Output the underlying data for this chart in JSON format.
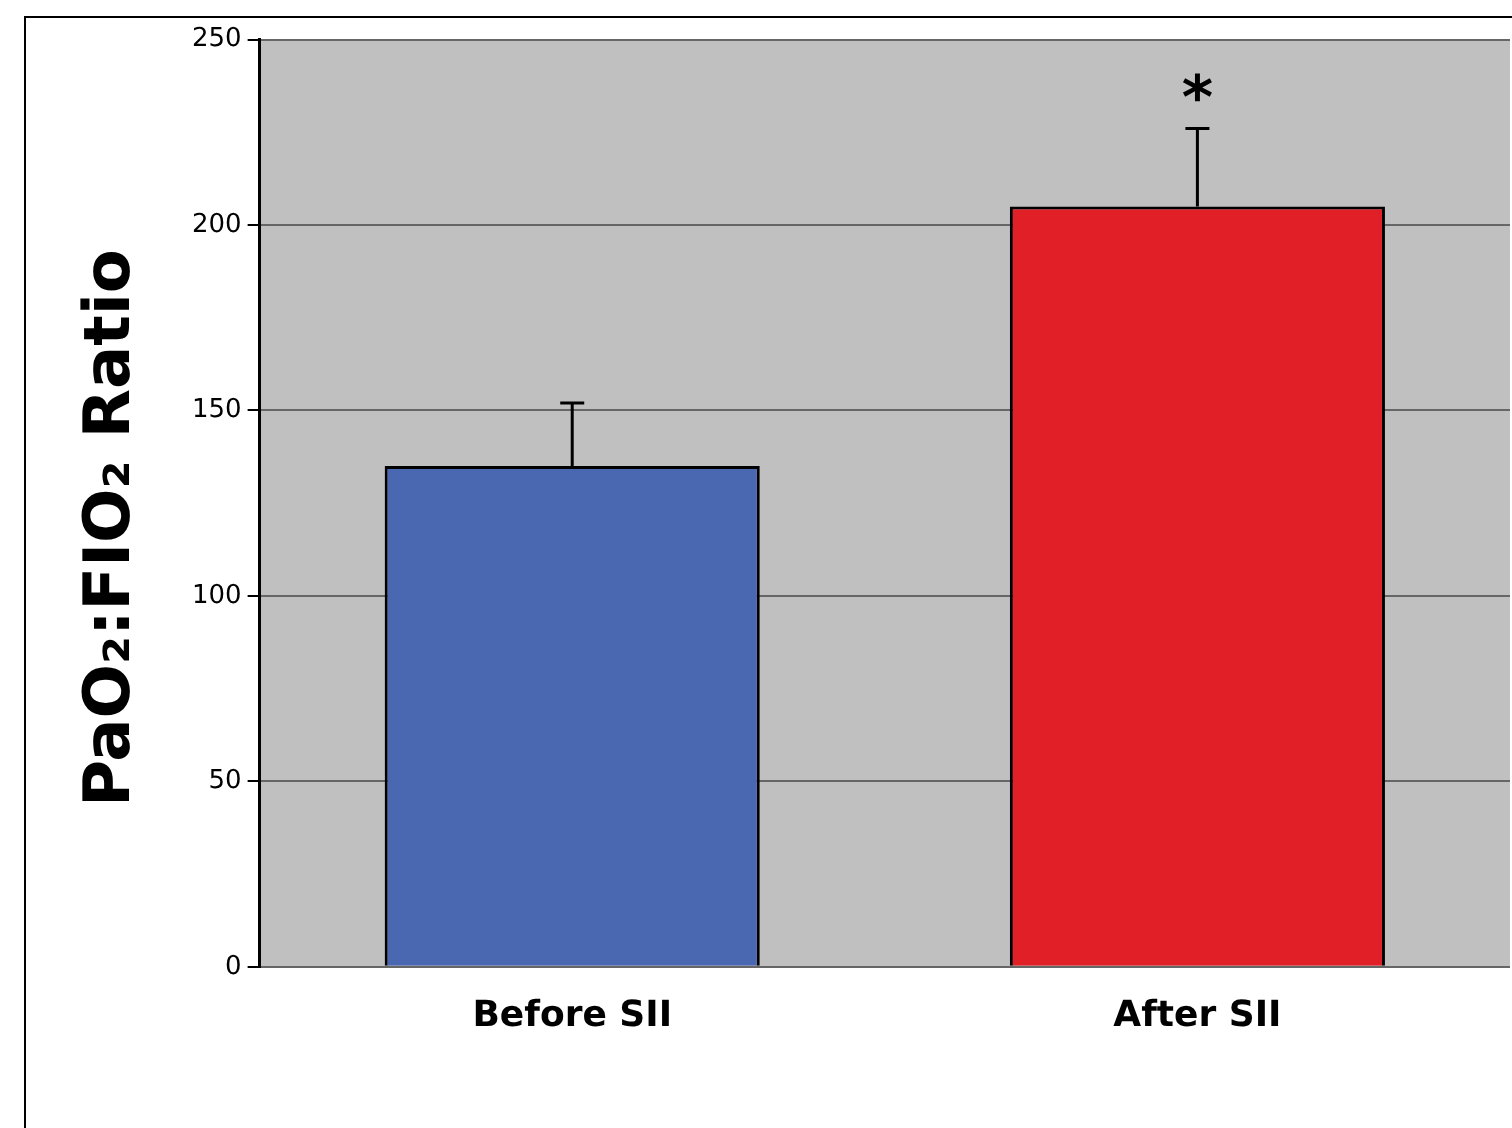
{
  "chart_data": {
    "type": "bar",
    "ylabel": "PaO₂:FIO₂ Ratio",
    "categories": [
      "Before SII",
      "After SII"
    ],
    "values": [
      135,
      205
    ],
    "colors": [
      "#4a68b2",
      "#e01f26"
    ],
    "errors": [
      [
        135,
        152
      ],
      [
        205,
        226
      ]
    ],
    "ylim": [
      0,
      250
    ],
    "yticks": [
      0,
      50,
      100,
      150,
      200,
      250
    ],
    "grid": "y",
    "annotations": [
      {
        "text": "*",
        "x": "After SII",
        "y": 226
      }
    ]
  }
}
